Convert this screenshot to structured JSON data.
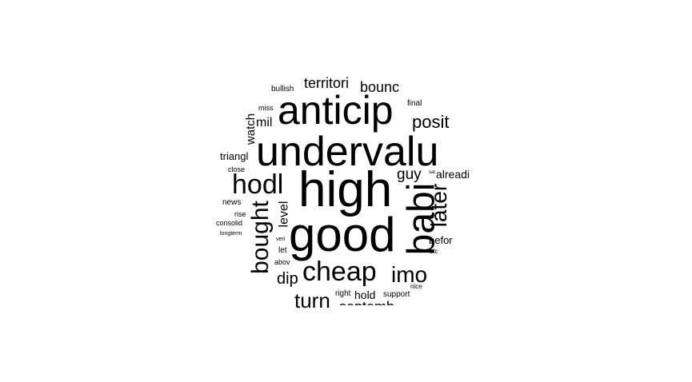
{
  "cloud": {
    "text_color": "#000000",
    "background": "#ffffff",
    "words": [
      {
        "text": "high"
      },
      {
        "text": "good"
      },
      {
        "text": "undervalu"
      },
      {
        "text": "anticip"
      },
      {
        "text": "babi"
      },
      {
        "text": "hodl"
      },
      {
        "text": "bought"
      },
      {
        "text": "cheap"
      },
      {
        "text": "later"
      },
      {
        "text": "imo"
      },
      {
        "text": "turn"
      },
      {
        "text": "posit"
      },
      {
        "text": "territori"
      },
      {
        "text": "bounc"
      },
      {
        "text": "guy"
      },
      {
        "text": "dip"
      },
      {
        "text": "level"
      },
      {
        "text": "watch"
      },
      {
        "text": "mil"
      },
      {
        "text": "hold"
      },
      {
        "text": "alreadi"
      },
      {
        "text": "befor"
      },
      {
        "text": "triangl"
      },
      {
        "text": "bullish"
      },
      {
        "text": "final"
      },
      {
        "text": "miss"
      },
      {
        "text": "news"
      },
      {
        "text": "close"
      },
      {
        "text": "rise"
      },
      {
        "text": "consolid"
      },
      {
        "text": "let"
      },
      {
        "text": "right"
      },
      {
        "text": "support"
      },
      {
        "text": "abov"
      },
      {
        "text": "nice"
      },
      {
        "text": "veri"
      },
      {
        "text": "btc"
      },
      {
        "text": "longterm"
      },
      {
        "text": "sat"
      },
      {
        "text": "septemb"
      }
    ]
  }
}
